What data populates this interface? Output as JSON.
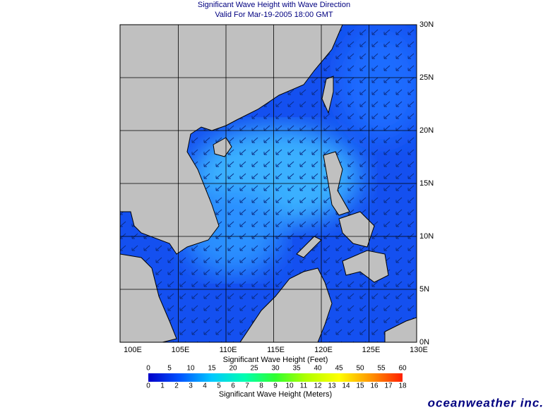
{
  "header": {
    "title": "Significant Wave Height with Wave Direction",
    "subtitle": "Valid For Mar-19-2005 18:00 GMT"
  },
  "map": {
    "lat_labels": [
      "30N",
      "25N",
      "20N",
      "15N",
      "10N",
      "5N",
      "0N"
    ],
    "lon_labels": [
      "100E",
      "105E",
      "110E",
      "115E",
      "120E",
      "125E",
      "130E"
    ]
  },
  "colorbar": {
    "feet_label": "Significant Wave Height (Feet)",
    "feet_ticks": [
      0,
      5,
      10,
      15,
      20,
      25,
      30,
      35,
      40,
      45,
      50,
      55,
      60
    ],
    "meter_ticks": [
      0,
      1,
      2,
      3,
      4,
      5,
      6,
      7,
      8,
      9,
      10,
      11,
      12,
      13,
      14,
      15,
      16,
      17,
      18
    ],
    "meter_label": "Significant Wave Height (Meters)"
  },
  "brand": "oceanweather inc."
}
